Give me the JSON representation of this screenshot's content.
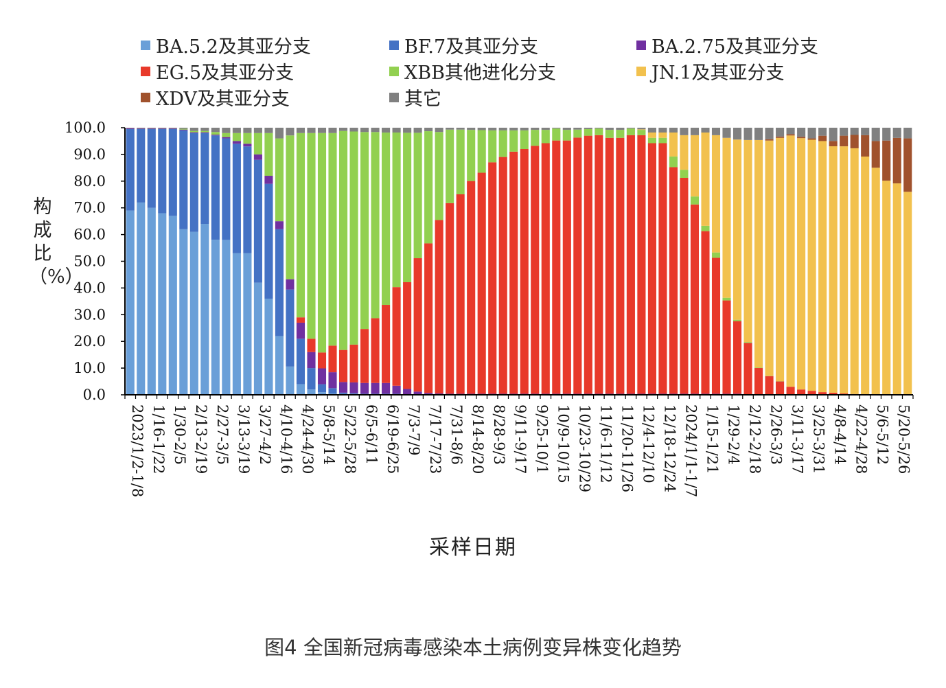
{
  "chart_data": {
    "type": "bar",
    "stacked": true,
    "ylabel": "构成比（%）",
    "xlabel": "采样日期",
    "ylim": [
      0,
      100
    ],
    "yticks": [
      "0.0",
      "10.0",
      "20.0",
      "30.0",
      "40.0",
      "50.0",
      "60.0",
      "70.0",
      "80.0",
      "90.0",
      "100.0"
    ],
    "x_tick_labels": [
      "2023/1/2-1/8",
      "1/16-1/22",
      "1/30-2/5",
      "2/13-2/19",
      "2/27-3/5",
      "3/13-3/19",
      "3/27-4/2",
      "4/10-4/16",
      "4/24-4/30",
      "5/8-5/14",
      "5/22-5/28",
      "6/5-6/11",
      "6/19-6/25",
      "7/3-7/9",
      "7/17-7/23",
      "7/31-8/6",
      "8/14-8/20",
      "8/28-9/3",
      "9/11-9/17",
      "9/25-10/1",
      "10/9-10/15",
      "10/23-10/29",
      "11/6-11/12",
      "11/20-11/26",
      "12/4-12/10",
      "12/18-12/24",
      "2024/1/1-1/7",
      "1/15-1/21",
      "1/29-2/4",
      "2/12-2/18",
      "2/26-3/3",
      "3/11-3/17",
      "3/25-3/31",
      "4/8-4/14",
      "4/22-4/28",
      "5/6-5/12",
      "5/20-5/26"
    ],
    "series": [
      {
        "name": "BA.5.2及其亚分支",
        "color": "#6a9fd8",
        "values": [
          69,
          72,
          70,
          68,
          67,
          62,
          61,
          64,
          58,
          58,
          53,
          53,
          42,
          36,
          22,
          11,
          4,
          2,
          1,
          0.5,
          0.3,
          0.3,
          0.2,
          0.2,
          0.2,
          0.2,
          0.1,
          0.1,
          0.1,
          0.1,
          0.1,
          0.1,
          0.1,
          0.1,
          0.1,
          0.1,
          0.1,
          0.1,
          0.1,
          0.1,
          0.1,
          0.1,
          0.1,
          0.1,
          0.1,
          0.1,
          0.1,
          0.1,
          0.1,
          0.1,
          0.1,
          0.1,
          0.1,
          0.1,
          0.1,
          0.1,
          0.1,
          0.1,
          0,
          0,
          0,
          0,
          0,
          0,
          0,
          0,
          0,
          0,
          0,
          0,
          0,
          0,
          0,
          0
        ]
      },
      {
        "name": "BF.7及其亚分支",
        "color": "#4472c4",
        "values": [
          30.5,
          27.5,
          29.5,
          31.5,
          32.5,
          37,
          37,
          34,
          39,
          38,
          41,
          40,
          46,
          43,
          40,
          30,
          17,
          8,
          3,
          2,
          0.5,
          0.3,
          0.2,
          0.2,
          0.2,
          0.2,
          0.1,
          0.1,
          0.1,
          0.1,
          0.1,
          0.1,
          0.1,
          0.1,
          0.1,
          0.1,
          0.1,
          0.1,
          0.1,
          0.1,
          0.1,
          0.1,
          0.1,
          0.1,
          0.1,
          0.1,
          0.1,
          0.1,
          0.1,
          0.1,
          0.1,
          0.1,
          0.1,
          0.1,
          0.1,
          0.1,
          0.1,
          0.1,
          0,
          0,
          0,
          0,
          0,
          0,
          0,
          0,
          0,
          0,
          0,
          0,
          0,
          0,
          0,
          0
        ]
      },
      {
        "name": "BA.2.75及其亚分支",
        "color": "#7030a0",
        "values": [
          0.3,
          0.2,
          0.2,
          0.2,
          0.2,
          0.3,
          0.3,
          0.3,
          0.3,
          0.5,
          1,
          1,
          2,
          3,
          3,
          4,
          6,
          6,
          6,
          6,
          4,
          4,
          4,
          4,
          4,
          3,
          2,
          1,
          0.5,
          0.3,
          0.2,
          0.2,
          0.2,
          0.2,
          0.2,
          0.2,
          0.2,
          0.2,
          0.2,
          0.2,
          0.2,
          0.2,
          0.2,
          0.2,
          0.2,
          0.2,
          0.2,
          0.2,
          0.2,
          0.2,
          0.2,
          0.2,
          0.2,
          0.2,
          0.2,
          0.2,
          0.2,
          0.2,
          0,
          0,
          0,
          0,
          0,
          0,
          0,
          0,
          0,
          0,
          0,
          0,
          0,
          0,
          0,
          0
        ]
      },
      {
        "name": "EG.5及其亚分支",
        "color": "#e8392a",
        "values": [
          0,
          0,
          0,
          0,
          0,
          0,
          0,
          0,
          0,
          0,
          0,
          0,
          0,
          0,
          0,
          0,
          2,
          5,
          6,
          10,
          12,
          14,
          20,
          24,
          29,
          37,
          40,
          50,
          56,
          65,
          70,
          74,
          79,
          83,
          87,
          89,
          91,
          92,
          93,
          94,
          95,
          95,
          96,
          97,
          97,
          96,
          96,
          97,
          97,
          94,
          94,
          85,
          81,
          71,
          61,
          51,
          35,
          27,
          19,
          10,
          7,
          5,
          3,
          2,
          1.5,
          1,
          0.8,
          0.5,
          0.3,
          0.2,
          0.1,
          0,
          0,
          0
        ]
      },
      {
        "name": "XBB其他进化分支",
        "color": "#92d050",
        "values": [
          0,
          0,
          0,
          0,
          0,
          0.3,
          0.5,
          0.5,
          1,
          1.5,
          3,
          4,
          8,
          16,
          31,
          56,
          69,
          77,
          83,
          80,
          82,
          79,
          73,
          69,
          64,
          58,
          56,
          47,
          42,
          33,
          27,
          24,
          19,
          16,
          12,
          10,
          8,
          7,
          6,
          5,
          4.5,
          4,
          3,
          2.5,
          2.5,
          3,
          3,
          2.5,
          2,
          2,
          2,
          4,
          3,
          3,
          2,
          2,
          1,
          0.5,
          0.3,
          0.2,
          0.1,
          0.1,
          0,
          0,
          0,
          0,
          0,
          0,
          0,
          0,
          0,
          0,
          0,
          0
        ]
      },
      {
        "name": "JN.1及其亚分支",
        "color": "#f2c14e",
        "values": [
          0,
          0,
          0,
          0,
          0,
          0,
          0,
          0,
          0,
          0,
          0,
          0,
          0,
          0,
          0,
          0,
          0,
          0,
          0,
          0,
          0,
          0,
          0,
          0,
          0,
          0,
          0,
          0,
          0,
          0,
          0,
          0,
          0,
          0,
          0,
          0,
          0,
          0,
          0,
          0,
          0,
          0,
          0,
          0,
          0,
          0,
          0,
          0,
          0.2,
          2,
          2,
          9,
          13,
          23,
          35,
          44,
          60,
          67,
          74,
          85,
          88,
          91,
          94,
          94,
          94,
          94,
          93,
          93,
          92,
          89,
          85,
          80,
          79,
          76
        ]
      },
      {
        "name": "XDV及其亚分支",
        "color": "#a0522d",
        "values": [
          0,
          0,
          0,
          0,
          0,
          0,
          0,
          0,
          0,
          0,
          0,
          0,
          0,
          0,
          0,
          0,
          0,
          0,
          0,
          0,
          0,
          0,
          0,
          0,
          0,
          0,
          0,
          0,
          0,
          0,
          0,
          0,
          0,
          0,
          0,
          0,
          0,
          0,
          0,
          0,
          0,
          0,
          0,
          0,
          0,
          0,
          0,
          0,
          0,
          0,
          0,
          0,
          0,
          0,
          0,
          0,
          0,
          0,
          0,
          0,
          0.5,
          0.5,
          0.5,
          0.5,
          0.5,
          2,
          2,
          4,
          5,
          8,
          10,
          15,
          17,
          20
        ]
      },
      {
        "name": "其它",
        "color": "#808080",
        "values": [
          0.2,
          0.3,
          0.3,
          0.3,
          0.3,
          0.4,
          1.2,
          1.2,
          1.6,
          2,
          2,
          2,
          2,
          2,
          4,
          3,
          2,
          2,
          2,
          2,
          1.2,
          1.4,
          1.6,
          1.6,
          1.8,
          1.8,
          1.9,
          1.9,
          1.3,
          1.6,
          0.7,
          0.7,
          0.8,
          0.9,
          1,
          1,
          1,
          1,
          0.8,
          0.8,
          0.3,
          0.8,
          0.7,
          0.5,
          0.3,
          0.8,
          0.8,
          0.3,
          0.6,
          1.8,
          1.8,
          1.8,
          2.8,
          2.8,
          1.8,
          2.8,
          3.8,
          4.4,
          4.5,
          4.6,
          4.3,
          3.3,
          2.4,
          3.4,
          4,
          3,
          5,
          3,
          2.7,
          2.8,
          5,
          4.8,
          3.8,
          4
        ]
      }
    ],
    "legend_placement": "top",
    "grid": false
  },
  "caption": "图4 全国新冠病毒感染本土病例变异株变化趋势"
}
